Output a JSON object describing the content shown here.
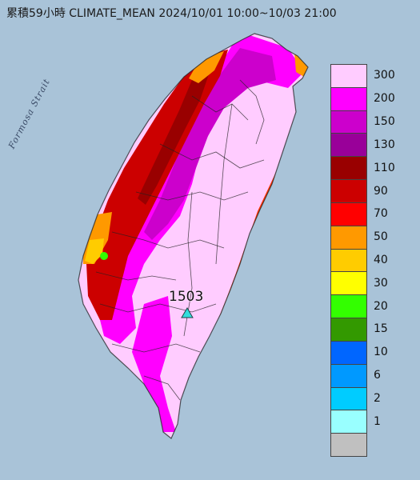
{
  "title": "累積59小時 CLIMATE_MEAN 2024/10/01 10:00~10/03 21:00",
  "strait_label": "Formosa Strait",
  "max_value_label": "1503",
  "map_colors": {
    "sea": "#a9c3d8",
    "low": "#ffccff",
    "mid": "#ff00ff",
    "high": "#cc00cc",
    "red": "#cc0000",
    "dark_red": "#990000",
    "orange": "#ff9900",
    "yellow": "#ffcc00",
    "green": "#33ff00",
    "east_coast": "#ff3300"
  },
  "legend": {
    "items": [
      {
        "label": "300",
        "color": "#ffccff"
      },
      {
        "label": "200",
        "color": "#ff00ff"
      },
      {
        "label": "150",
        "color": "#cc00cc"
      },
      {
        "label": "130",
        "color": "#990099"
      },
      {
        "label": "110",
        "color": "#990000"
      },
      {
        "label": "90",
        "color": "#cc0000"
      },
      {
        "label": "70",
        "color": "#ff0000"
      },
      {
        "label": "50",
        "color": "#ff9900"
      },
      {
        "label": "40",
        "color": "#ffcc00"
      },
      {
        "label": "30",
        "color": "#ffff00"
      },
      {
        "label": "20",
        "color": "#33ff00"
      },
      {
        "label": "15",
        "color": "#339900"
      },
      {
        "label": "10",
        "color": "#0066ff"
      },
      {
        "label": "6",
        "color": "#0099ff"
      },
      {
        "label": "2",
        "color": "#00ccff"
      },
      {
        "label": "1",
        "color": "#99ffff"
      },
      {
        "label": "",
        "color": "#c0c0c0"
      }
    ]
  }
}
